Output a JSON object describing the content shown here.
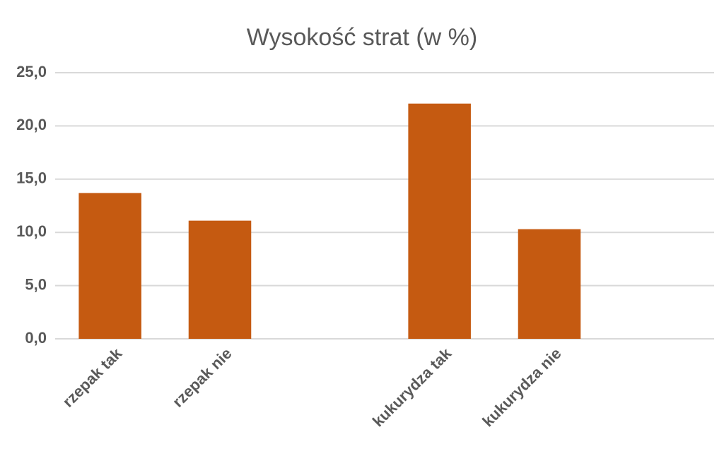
{
  "chart_data": {
    "type": "bar",
    "title": "Wysokość strat (w %)",
    "categories": [
      "rzepak tak",
      "rzepak nie",
      null,
      "kukurydza tak",
      "kukurydza nie",
      null
    ],
    "values": [
      13.7,
      11.1,
      null,
      22.1,
      10.3,
      null
    ],
    "color": "#c55a11",
    "ylim": [
      0,
      25
    ],
    "yticks": [
      {
        "value": 0,
        "label": "0,0"
      },
      {
        "value": 5,
        "label": "5,0"
      },
      {
        "value": 10,
        "label": "10,0"
      },
      {
        "value": 15,
        "label": "15,0"
      },
      {
        "value": 20,
        "label": "20,0"
      },
      {
        "value": 25,
        "label": "25,0"
      }
    ],
    "grid": true
  }
}
